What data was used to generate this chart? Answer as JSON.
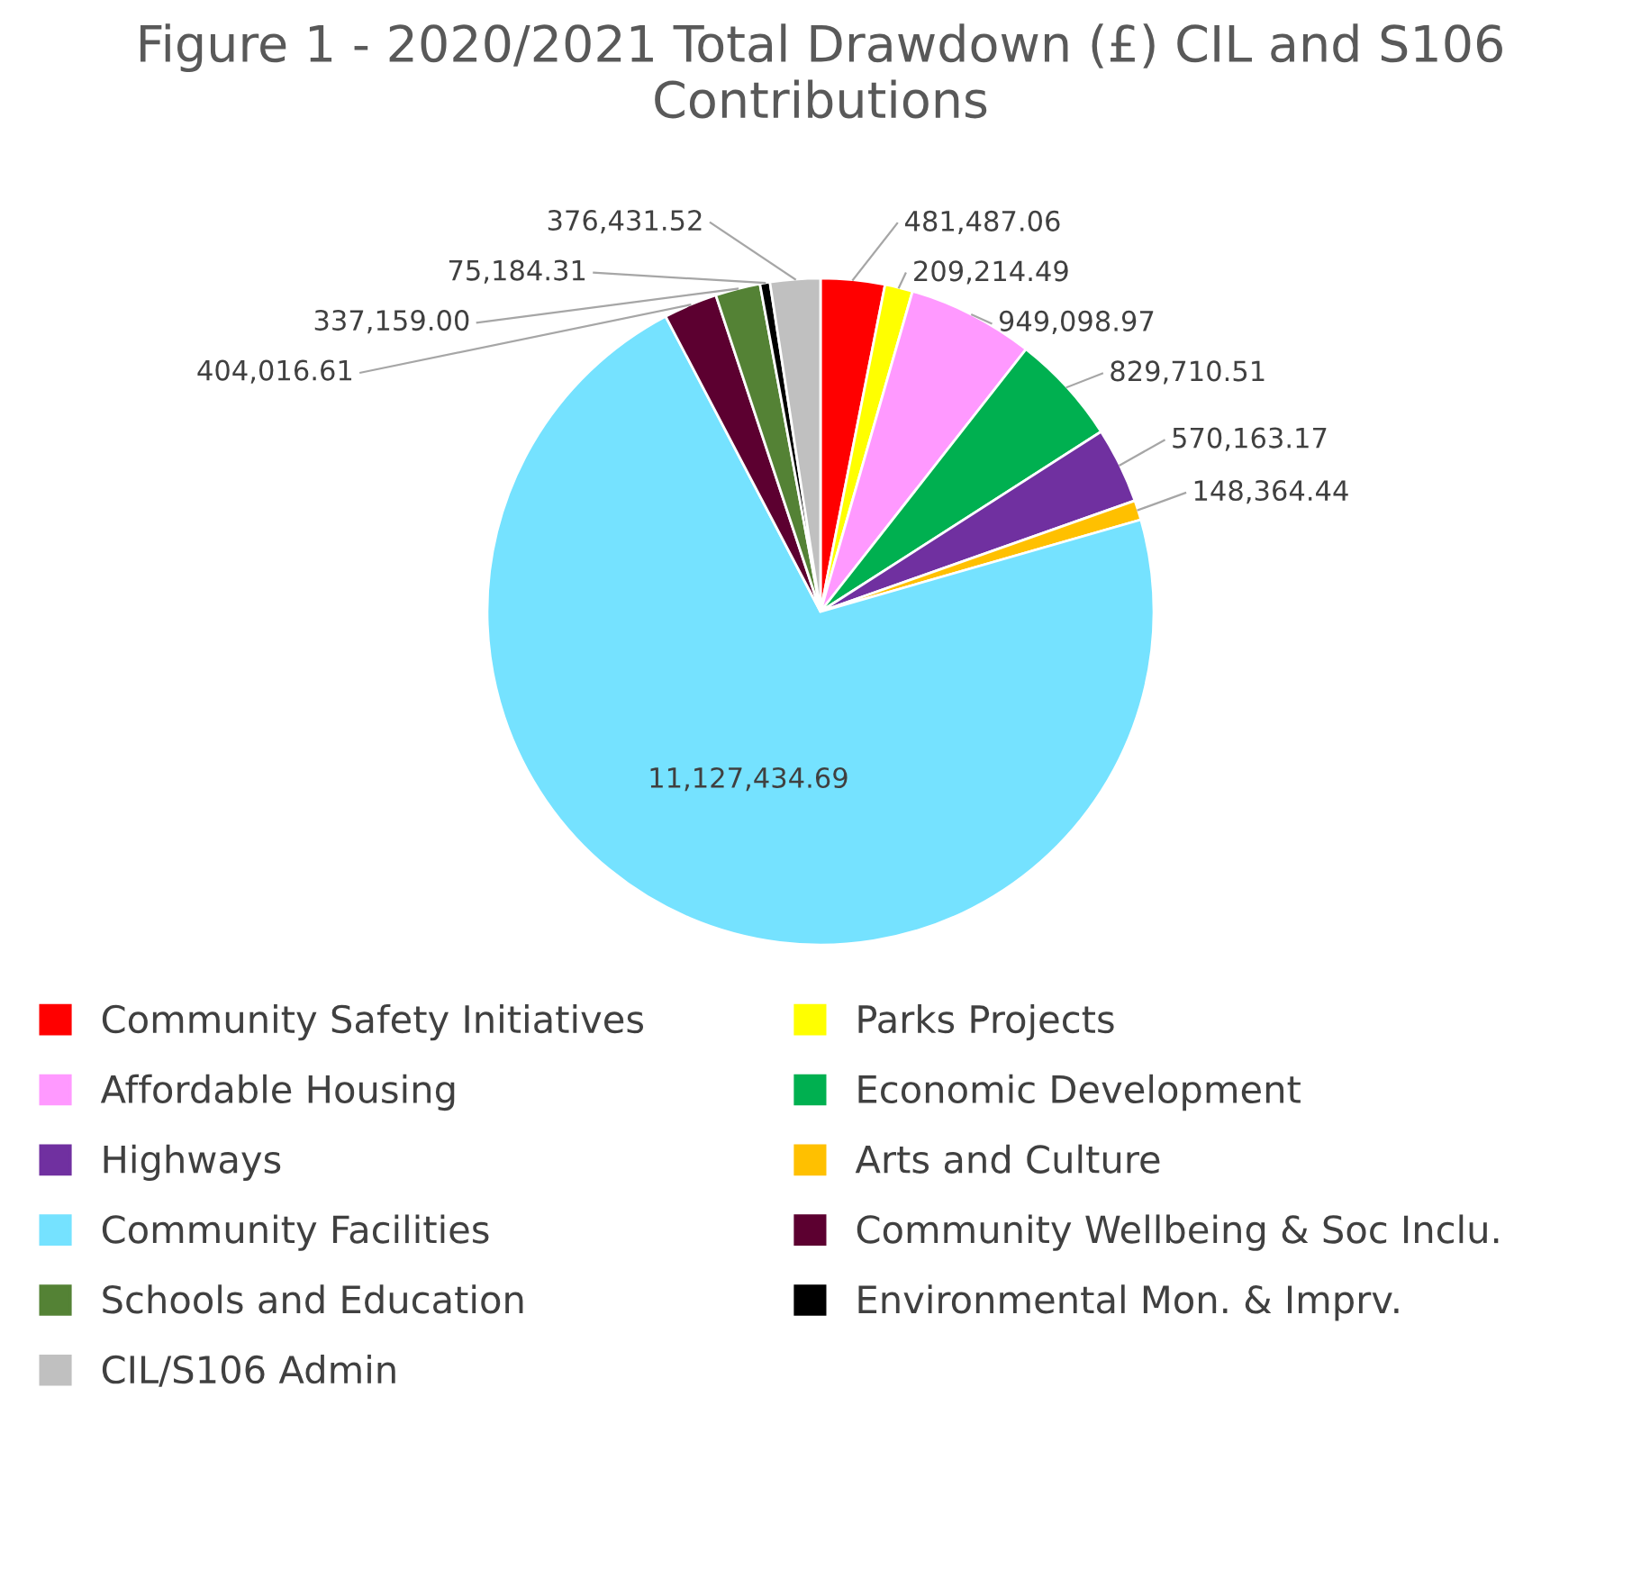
{
  "chart_data": {
    "type": "pie",
    "title": "Figure 1 - 2020/2021 Total Drawdown (£) CIL and S106 Contributions",
    "categories": [
      "Community Safety Initiatives",
      "Parks Projects",
      "Affordable Housing",
      "Economic Development",
      "Highways",
      "Arts and Culture",
      "Community Facilities",
      "Community Wellbeing & Soc Inclu.",
      "Schools and Education",
      "Environmental Mon. & Imprv.",
      "CIL/S106 Admin"
    ],
    "values": [
      481487.06,
      209214.49,
      949098.97,
      829710.51,
      570163.17,
      148364.44,
      11127434.69,
      404016.61,
      337159.0,
      75184.31,
      376431.52
    ],
    "colors": [
      "#ff0000",
      "#ffff00",
      "#ff99ff",
      "#00b050",
      "#7030a0",
      "#ffc000",
      "#75e2ff",
      "#5c0030",
      "#548235",
      "#000000",
      "#c0c0c0"
    ],
    "value_labels": [
      "481,487.06",
      "209,214.49",
      "949,098.97",
      "829,710.51",
      "570,163.17",
      "148,364.44",
      "11,127,434.69",
      "404,016.61",
      "337,159.00",
      "75,184.31",
      "376,431.52"
    ],
    "legend": "bottom"
  }
}
